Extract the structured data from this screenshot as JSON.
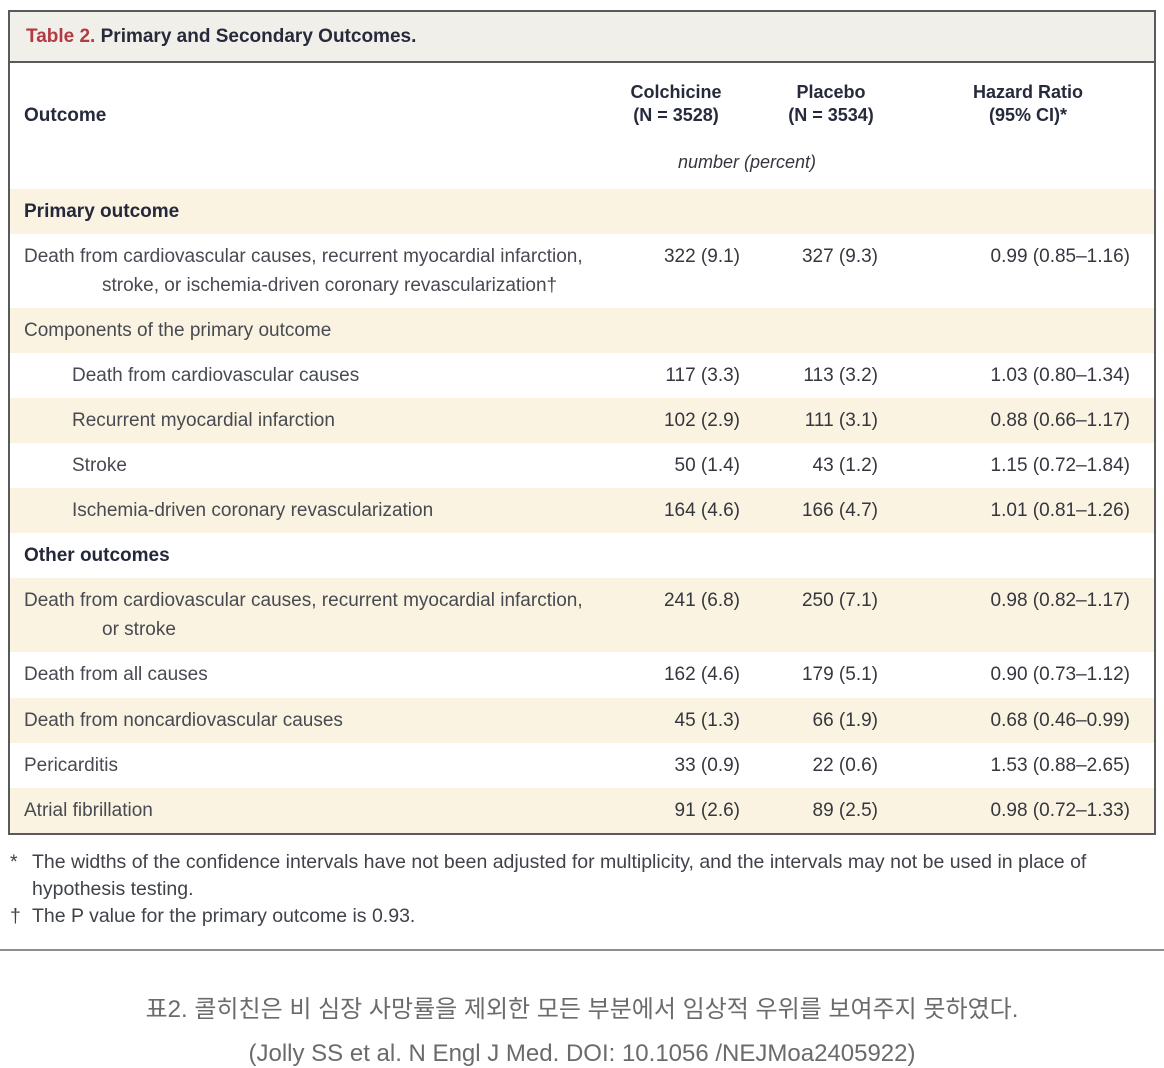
{
  "colors": {
    "accent_red": "#b23a41",
    "title_bar_bg": "#f1efea",
    "row_shade_cream": "#fbf3e1",
    "frame_border": "#595a5c",
    "heading_text": "#262a3b",
    "body_text": "#474a51",
    "caption_text": "#6b6b6b"
  },
  "table": {
    "title_number": "Table 2.",
    "title_text": "Primary and Secondary Outcomes.",
    "outcome_header": "Outcome",
    "columns": [
      {
        "title": "Colchicine",
        "sub": "(N = 3528)"
      },
      {
        "title": "Placebo",
        "sub": "(N = 3534)"
      },
      {
        "title": "Hazard Ratio",
        "sub": "(95% CI)*"
      }
    ],
    "units_label": "number (percent)",
    "rows": [
      {
        "type": "section",
        "indent": 0,
        "shaded": true,
        "label": "Primary outcome",
        "colchicine": "",
        "placebo": "",
        "hr": ""
      },
      {
        "type": "data",
        "indent": 0,
        "shaded": false,
        "label": "Death from cardiovascular causes, recurrent myocardial infarction, stroke, or ischemia-driven coronary revascularization†",
        "colchicine": "322 (9.1)",
        "placebo": "327 (9.3)",
        "hr": "0.99 (0.85–1.16)"
      },
      {
        "type": "subsection",
        "indent": 0,
        "shaded": true,
        "label": "Components of the primary outcome",
        "colchicine": "",
        "placebo": "",
        "hr": ""
      },
      {
        "type": "data",
        "indent": 1,
        "shaded": false,
        "label": "Death from cardiovascular causes",
        "colchicine": "117 (3.3)",
        "placebo": "113 (3.2)",
        "hr": "1.03 (0.80–1.34)"
      },
      {
        "type": "data",
        "indent": 1,
        "shaded": true,
        "label": "Recurrent myocardial infarction",
        "colchicine": "102 (2.9)",
        "placebo": "111 (3.1)",
        "hr": "0.88 (0.66–1.17)"
      },
      {
        "type": "data",
        "indent": 1,
        "shaded": false,
        "label": "Stroke",
        "colchicine": "50 (1.4)",
        "placebo": "43 (1.2)",
        "hr": "1.15 (0.72–1.84)"
      },
      {
        "type": "data",
        "indent": 1,
        "shaded": true,
        "label": "Ischemia-driven coronary revascularization",
        "colchicine": "164 (4.6)",
        "placebo": "166 (4.7)",
        "hr": "1.01 (0.81–1.26)"
      },
      {
        "type": "section",
        "indent": 0,
        "shaded": false,
        "label": "Other outcomes",
        "colchicine": "",
        "placebo": "",
        "hr": ""
      },
      {
        "type": "data",
        "indent": 0,
        "shaded": true,
        "label": "Death from cardiovascular causes, recurrent myocardial infarction, or stroke",
        "colchicine": "241 (6.8)",
        "placebo": "250 (7.1)",
        "hr": "0.98 (0.82–1.17)"
      },
      {
        "type": "data",
        "indent": 0,
        "shaded": false,
        "label": "Death from all causes",
        "colchicine": "162 (4.6)",
        "placebo": "179 (5.1)",
        "hr": "0.90 (0.73–1.12)"
      },
      {
        "type": "data",
        "indent": 0,
        "shaded": true,
        "label": "Death from noncardiovascular causes",
        "colchicine": "45 (1.3)",
        "placebo": "66 (1.9)",
        "hr": "0.68 (0.46–0.99)"
      },
      {
        "type": "data",
        "indent": 0,
        "shaded": false,
        "label": "Pericarditis",
        "colchicine": "33 (0.9)",
        "placebo": "22 (0.6)",
        "hr": "1.53 (0.88–2.65)"
      },
      {
        "type": "data",
        "indent": 0,
        "shaded": true,
        "label": "Atrial fibrillation",
        "colchicine": "91 (2.6)",
        "placebo": "89 (2.5)",
        "hr": "0.98 (0.72–1.33)"
      }
    ]
  },
  "footnotes": [
    {
      "marker": "*",
      "text": "The widths of the confidence intervals have not been adjusted for multiplicity, and the intervals may not be used in place of hypothesis testing."
    },
    {
      "marker": "†",
      "text": "The P value for the primary outcome is 0.93."
    }
  ],
  "caption": {
    "line1": "표2. 콜히친은 비 심장 사망률을 제외한 모든 부분에서 임상적 우위를 보여주지 못하였다.",
    "line2": "(Jolly SS et al. N Engl J Med. DOI: 10.1056 /NEJMoa2405922)"
  }
}
